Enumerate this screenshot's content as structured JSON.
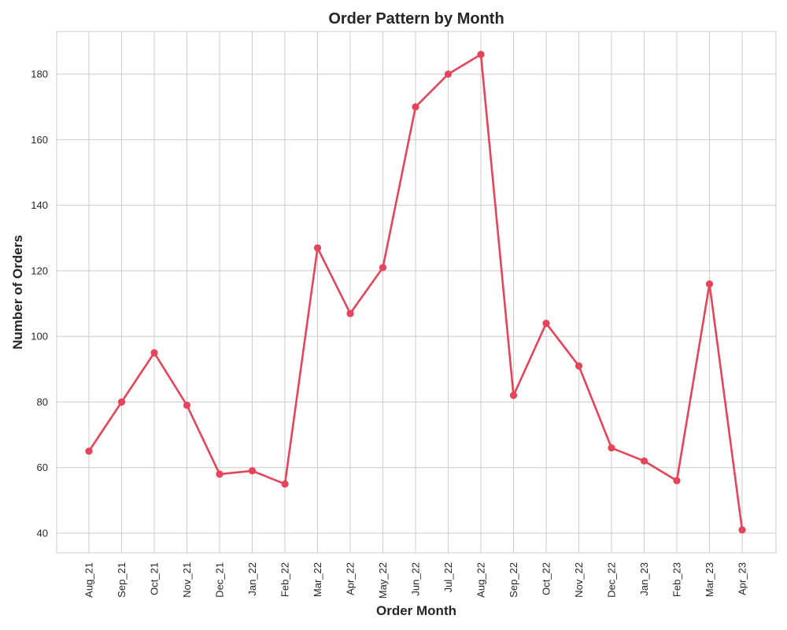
{
  "chart_data": {
    "type": "line",
    "title": "Order Pattern by Month",
    "xlabel": "Order Month",
    "ylabel": "Number of Orders",
    "categories": [
      "Aug_21",
      "Sep_21",
      "Oct_21",
      "Nov_21",
      "Dec_21",
      "Jan_22",
      "Feb_22",
      "Mar_22",
      "Apr_22",
      "May_22",
      "Jun_22",
      "Jul_22",
      "Aug_22",
      "Sep_22",
      "Oct_22",
      "Nov_22",
      "Dec_22",
      "Jan_23",
      "Feb_23",
      "Mar_23",
      "Apr_23"
    ],
    "series": [
      {
        "values": [
          65,
          80,
          95,
          79,
          58,
          59,
          55,
          127,
          107,
          121,
          170,
          180,
          186,
          82,
          104,
          91,
          66,
          62,
          56,
          116,
          41
        ],
        "color": "#e5445a"
      }
    ],
    "ylim": [
      34,
      193
    ],
    "yticks": [
      40,
      60,
      80,
      100,
      120,
      140,
      160,
      180
    ],
    "grid": true,
    "legend": "none"
  }
}
